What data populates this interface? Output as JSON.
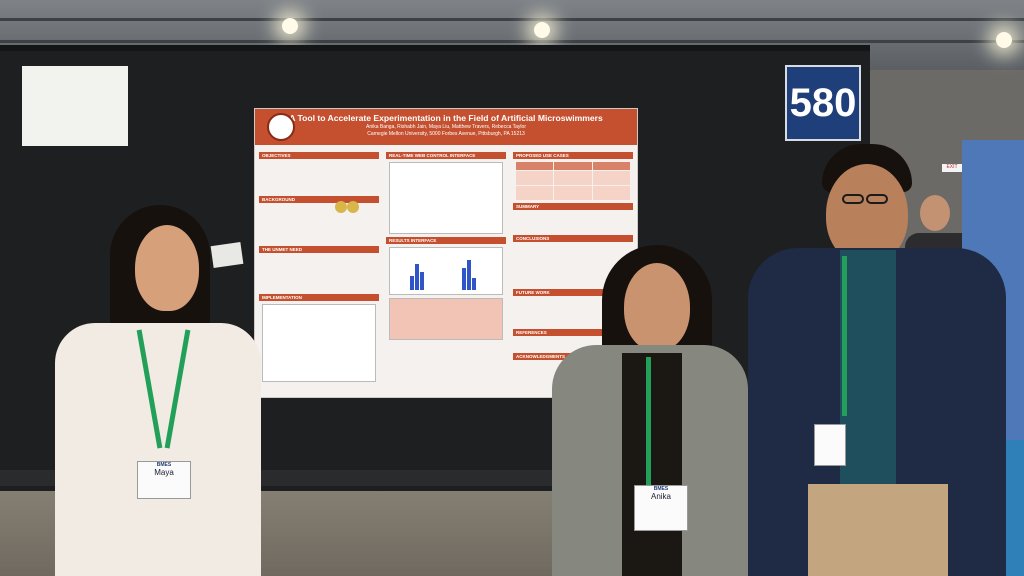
{
  "booth_number": "580",
  "poster": {
    "title": "A Tool to Accelerate Experimentation in the Field of Artificial Microswimmers",
    "authors": "Anika Banga, Rishabh Jain, Maya Liu, Matthew Travers, Rebecca Taylor",
    "affiliation": "Carnegie Mellon University, 5000 Forbes Avenue, Pittsburgh, PA 15213",
    "sections": [
      "OBJECTIVES",
      "BACKGROUND",
      "THE UNMET NEED",
      "IMPLEMENTATION",
      "REAL-TIME WEB CONTROL INTERFACE",
      "RESULTS INTERFACE",
      "PROPOSED USE CASES",
      "SUMMARY",
      "CONCLUSIONS",
      "FUTURE WORK",
      "REFERENCES",
      "ACKNOWLEDGMENTS"
    ]
  },
  "badges": [
    {
      "org": "BMES",
      "name": "Maya"
    },
    {
      "org": "BMES",
      "name": "Anika"
    },
    {
      "org": "",
      "name": ""
    }
  ],
  "exit_sign": "EXIT",
  "colors": {
    "poster_accent": "#c4502f",
    "booth_sign": "#1f3f7a",
    "lanyard": "#22a05a",
    "board": "#1e1f21"
  }
}
